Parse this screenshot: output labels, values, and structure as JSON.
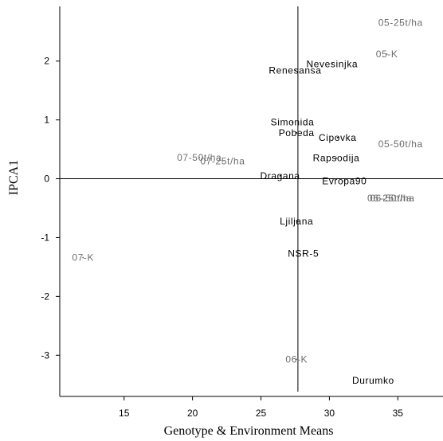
{
  "chart_data": {
    "type": "scatter",
    "xlabel": "Genotype & Environment Means",
    "ylabel": "IPCA1",
    "xlim": [
      10.3,
      38.3
    ],
    "ylim": [
      -3.7,
      2.93
    ],
    "x_ticks": [
      15,
      20,
      25,
      30,
      35
    ],
    "y_ticks": [
      2,
      1,
      0,
      -1,
      -2,
      -3
    ],
    "x_tick_labels": [
      "15",
      "20",
      "25",
      "30",
      "35"
    ],
    "y_tick_labels": [
      "2",
      "1",
      "0",
      "-1",
      "-2",
      "-3"
    ],
    "reference_lines": {
      "x": 27.7,
      "y": 0
    },
    "grid": false,
    "legend": "none",
    "colors": {
      "genotype": "#000000",
      "environment": "#6e6e6e",
      "axis": "#000000"
    },
    "environments": [
      {
        "label": "05-25t/ha",
        "x": 35.2,
        "y": 2.65
      },
      {
        "label": "05-K",
        "x": 34.2,
        "y": 2.12
      },
      {
        "label": "05-50t/ha",
        "x": 35.2,
        "y": 0.59
      },
      {
        "label": "07-50t/ha",
        "x": 20.5,
        "y": 0.36
      },
      {
        "label": "07-25t/ha",
        "x": 22.2,
        "y": 0.3
      },
      {
        "label": "06-25t/ha",
        "x": 34.4,
        "y": -0.33
      },
      {
        "label": "06-50t/ha",
        "x": 34.6,
        "y": -0.33
      },
      {
        "label": "07-K",
        "x": 12.0,
        "y": -1.34
      },
      {
        "label": "06-K",
        "x": 27.6,
        "y": -3.07
      }
    ],
    "genotypes": [
      {
        "label": "Nevesinjka",
        "x": 30.2,
        "y": 1.95
      },
      {
        "label": "Renesansa",
        "x": 27.5,
        "y": 1.84
      },
      {
        "label": "Simonida",
        "x": 27.3,
        "y": 0.96
      },
      {
        "label": "Pobeda",
        "x": 27.6,
        "y": 0.78
      },
      {
        "label": "Cipovka",
        "x": 30.6,
        "y": 0.7
      },
      {
        "label": "Rapsodija",
        "x": 30.5,
        "y": 0.35
      },
      {
        "label": "Dragana",
        "x": 26.4,
        "y": 0.05
      },
      {
        "label": "Evropa90",
        "x": 31.1,
        "y": -0.04
      },
      {
        "label": "Ljiljana",
        "x": 27.6,
        "y": -0.72
      },
      {
        "label": "NSR-5",
        "x": 28.1,
        "y": -1.27
      },
      {
        "label": "Durumko",
        "x": 33.2,
        "y": -3.43
      }
    ]
  }
}
